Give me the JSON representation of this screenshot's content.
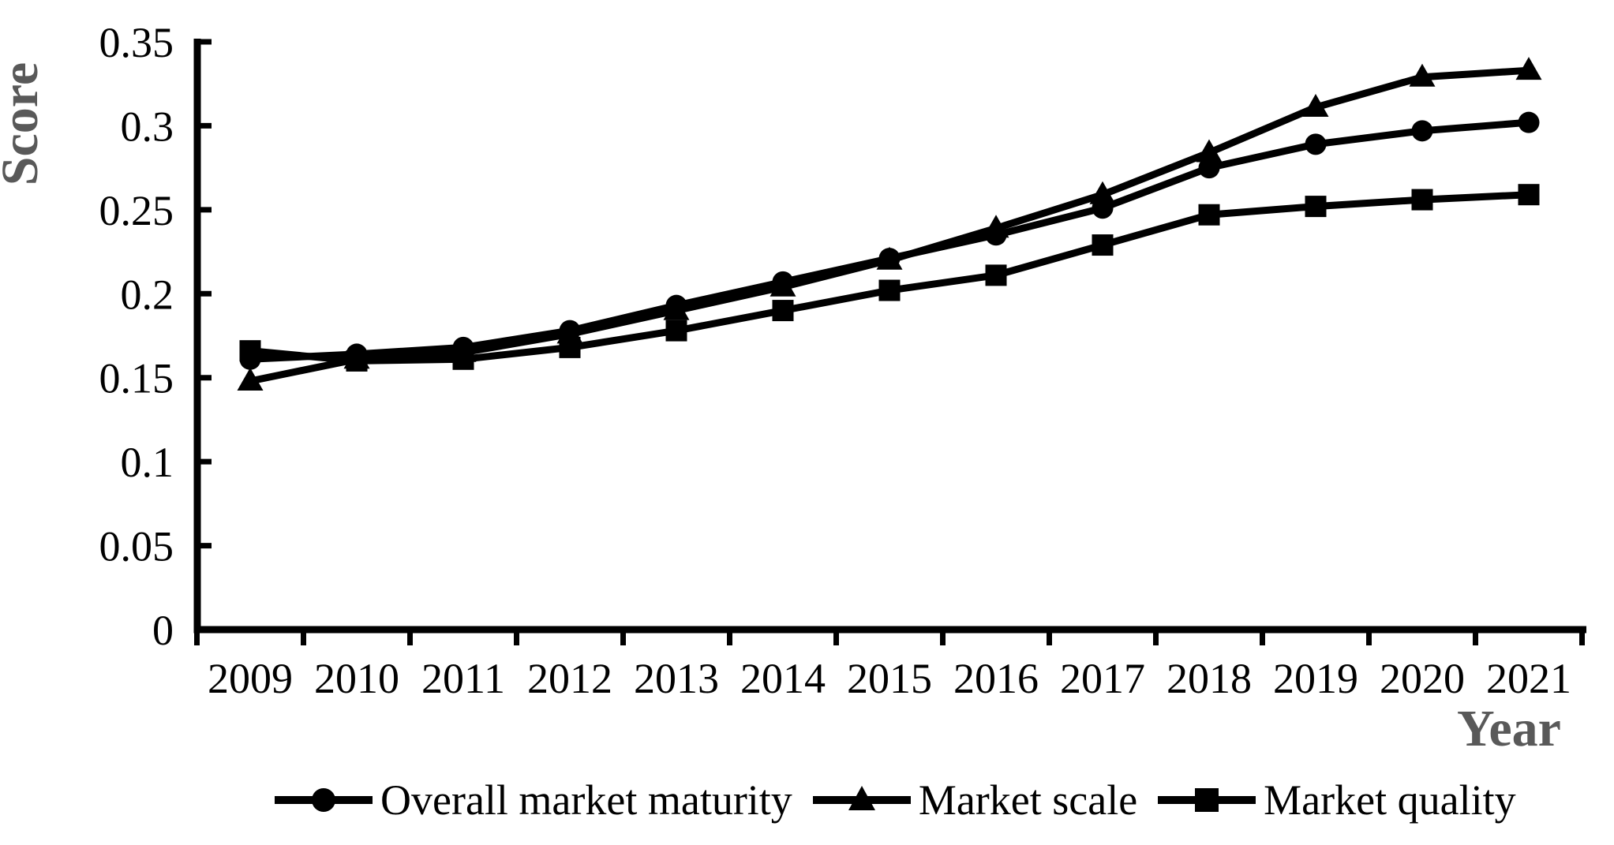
{
  "figure": {
    "background_color": "#ffffff",
    "series_color": "#000000",
    "axis_color": "#000000",
    "tick_label_color": "#000000",
    "axis_title_color": "#595959"
  },
  "chart_data": {
    "type": "line",
    "title": "",
    "xlabel": "Year",
    "ylabel": "Score",
    "categories": [
      "2009",
      "2010",
      "2011",
      "2012",
      "2013",
      "2014",
      "2015",
      "2016",
      "2017",
      "2018",
      "2019",
      "2020",
      "2021"
    ],
    "series": [
      {
        "name": "Overall market maturity",
        "marker": "circle",
        "color": "#000000",
        "values": [
          0.161,
          0.164,
          0.168,
          0.178,
          0.193,
          0.207,
          0.221,
          0.235,
          0.251,
          0.275,
          0.289,
          0.297,
          0.302
        ]
      },
      {
        "name": "Market scale",
        "marker": "triangle",
        "color": "#000000",
        "values": [
          0.148,
          0.161,
          0.165,
          0.176,
          0.19,
          0.204,
          0.22,
          0.239,
          0.259,
          0.284,
          0.311,
          0.329,
          0.333
        ]
      },
      {
        "name": "Market quality",
        "marker": "square",
        "color": "#000000",
        "values": [
          0.166,
          0.16,
          0.161,
          0.168,
          0.178,
          0.19,
          0.202,
          0.211,
          0.229,
          0.247,
          0.252,
          0.256,
          0.259
        ]
      }
    ],
    "ylim": [
      0,
      0.35
    ],
    "y_ticks": [
      0,
      0.05,
      0.1,
      0.15,
      0.2,
      0.25,
      0.3,
      0.35
    ],
    "y_tick_labels": [
      "0",
      "0.05",
      "0.1",
      "0.15",
      "0.2",
      "0.25",
      "0.3",
      "0.35"
    ],
    "grid": false,
    "legend_position": "bottom"
  }
}
